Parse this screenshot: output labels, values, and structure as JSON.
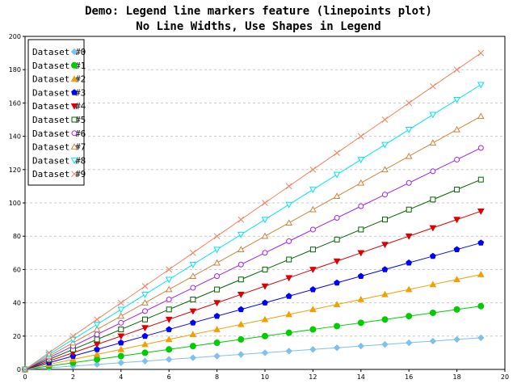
{
  "chart_data": {
    "type": "line",
    "title_lines": [
      "Demo: Legend line markers feature (linepoints plot)",
      "No Line Widths, Use Shapes in Legend"
    ],
    "xlabel": "",
    "ylabel": "",
    "xlim": [
      0,
      20
    ],
    "ylim": [
      0,
      200
    ],
    "x_ticks": [
      "0",
      "2",
      "4",
      "6",
      "8",
      "10",
      "12",
      "14",
      "16",
      "18",
      "20"
    ],
    "y_ticks": [
      "0",
      "20",
      "40",
      "60",
      "80",
      "100",
      "120",
      "140",
      "160",
      "180",
      "200"
    ],
    "grid": "horizontal dashed",
    "legend_position": "top-left",
    "x": [
      0,
      1,
      2,
      3,
      4,
      5,
      6,
      7,
      8,
      9,
      10,
      11,
      12,
      13,
      14,
      15,
      16,
      17,
      18,
      19
    ],
    "series": [
      {
        "name": "Dataset #0",
        "color": "#7ec0ee",
        "marker": "diamond",
        "values": [
          0,
          1,
          2,
          3,
          4,
          5,
          6,
          7,
          8,
          9,
          10,
          11,
          12,
          13,
          14,
          15,
          16,
          17,
          18,
          19
        ]
      },
      {
        "name": "Dataset #1",
        "color": "#00cc00",
        "marker": "circle-filled",
        "values": [
          0,
          2,
          4,
          6,
          8,
          10,
          12,
          14,
          16,
          18,
          20,
          22,
          24,
          26,
          28,
          30,
          32,
          34,
          36,
          38
        ]
      },
      {
        "name": "Dataset #2",
        "color": "#f0a000",
        "marker": "triangle-up-filled",
        "values": [
          0,
          3,
          6,
          9,
          12,
          15,
          18,
          21,
          24,
          27,
          30,
          33,
          36,
          39,
          42,
          45,
          48,
          51,
          54,
          57
        ]
      },
      {
        "name": "Dataset #3",
        "color": "#0000ff",
        "marker": "pentagon-filled",
        "values": [
          0,
          4,
          8,
          12,
          16,
          20,
          24,
          28,
          32,
          36,
          40,
          44,
          48,
          52,
          56,
          60,
          64,
          68,
          72,
          76
        ]
      },
      {
        "name": "Dataset #4",
        "color": "#dd0000",
        "marker": "triangle-down-filled",
        "values": [
          0,
          5,
          10,
          15,
          20,
          25,
          30,
          35,
          40,
          45,
          50,
          55,
          60,
          65,
          70,
          75,
          80,
          85,
          90,
          95
        ]
      },
      {
        "name": "Dataset #5",
        "color": "#006400",
        "marker": "square-open",
        "values": [
          0,
          6,
          12,
          18,
          24,
          30,
          36,
          42,
          48,
          54,
          60,
          66,
          72,
          78,
          84,
          90,
          96,
          102,
          108,
          114
        ]
      },
      {
        "name": "Dataset #6",
        "color": "#a020f0",
        "marker": "circle-open",
        "values": [
          0,
          7,
          14,
          21,
          28,
          35,
          42,
          49,
          56,
          63,
          70,
          77,
          84,
          91,
          98,
          105,
          112,
          119,
          126,
          133
        ]
      },
      {
        "name": "Dataset #7",
        "color": "#cd853f",
        "marker": "triangle-up-open",
        "values": [
          0,
          8,
          16,
          24,
          32,
          40,
          48,
          56,
          64,
          72,
          80,
          88,
          96,
          104,
          112,
          120,
          128,
          136,
          144,
          152
        ]
      },
      {
        "name": "Dataset #8",
        "color": "#00e5ee",
        "marker": "triangle-down-open",
        "values": [
          0,
          9,
          18,
          27,
          36,
          45,
          54,
          63,
          72,
          81,
          90,
          99,
          108,
          117,
          126,
          135,
          144,
          153,
          162,
          171
        ]
      },
      {
        "name": "Dataset #9",
        "color": "#f08060",
        "marker": "x",
        "values": [
          0,
          10,
          20,
          30,
          40,
          50,
          60,
          70,
          80,
          90,
          100,
          110,
          120,
          130,
          140,
          150,
          160,
          170,
          180,
          190
        ]
      }
    ]
  }
}
